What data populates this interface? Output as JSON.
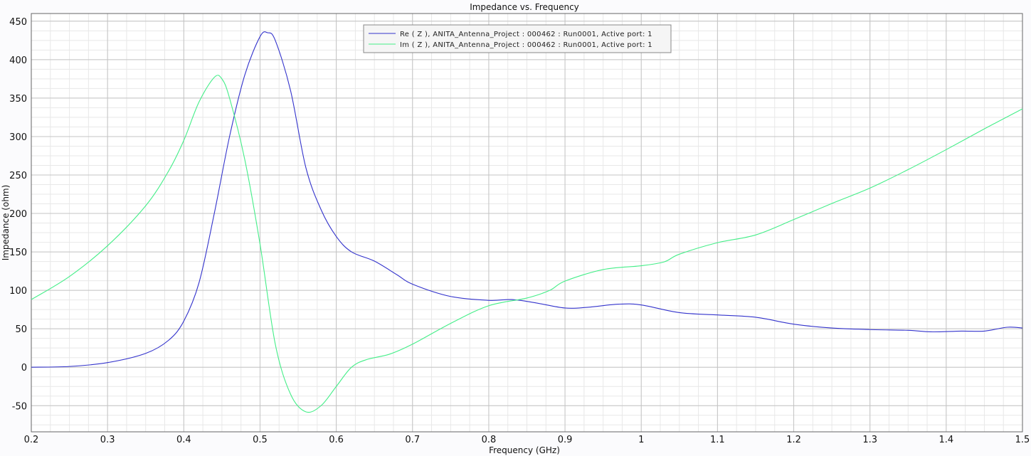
{
  "chart_data": {
    "type": "line",
    "title": "Impedance vs. Frequency",
    "xlabel": "Frequency (GHz)",
    "ylabel": "Impedance (ohm)",
    "xlim": [
      0.2,
      1.5
    ],
    "ylim": [
      -84,
      460
    ],
    "xticks": [
      0.2,
      0.3,
      0.4,
      0.5,
      0.6,
      0.7,
      0.8,
      0.9,
      1,
      1.1,
      1.2,
      1.3,
      1.4,
      1.5
    ],
    "yticks": [
      -50,
      0,
      50,
      100,
      150,
      200,
      250,
      300,
      350,
      400,
      450
    ],
    "grid": true,
    "legend_placement": "top-center",
    "series": [
      {
        "name": "Re ( Z ), ANITA_Antenna_Project : 000462 : Run0001, Active port: 1",
        "color": "#3333cc",
        "x": [
          0.2,
          0.25,
          0.3,
          0.35,
          0.38,
          0.4,
          0.42,
          0.44,
          0.46,
          0.48,
          0.5,
          0.51,
          0.52,
          0.54,
          0.56,
          0.58,
          0.6,
          0.62,
          0.65,
          0.68,
          0.7,
          0.75,
          0.8,
          0.83,
          0.86,
          0.9,
          0.93,
          0.97,
          1.0,
          1.05,
          1.1,
          1.15,
          1.2,
          1.25,
          1.3,
          1.35,
          1.38,
          1.42,
          1.45,
          1.48,
          1.5
        ],
        "y": [
          0,
          1,
          6,
          18,
          35,
          60,
          110,
          200,
          300,
          380,
          430,
          435,
          425,
          360,
          260,
          205,
          170,
          150,
          138,
          120,
          108,
          92,
          87,
          88,
          84,
          77,
          78,
          82,
          81,
          71,
          68,
          65,
          56,
          51,
          49,
          48,
          46,
          47,
          47,
          52,
          51
        ]
      },
      {
        "name": "Im ( Z ), ANITA_Antenna_Project : 000462 : Run0001, Active port: 1",
        "color": "#44ee88",
        "x": [
          0.2,
          0.25,
          0.3,
          0.35,
          0.38,
          0.4,
          0.42,
          0.44,
          0.45,
          0.46,
          0.48,
          0.5,
          0.52,
          0.54,
          0.56,
          0.58,
          0.6,
          0.62,
          0.64,
          0.67,
          0.7,
          0.75,
          0.8,
          0.85,
          0.88,
          0.9,
          0.95,
          1.0,
          1.03,
          1.05,
          1.1,
          1.15,
          1.2,
          1.25,
          1.3,
          1.35,
          1.4,
          1.45,
          1.5
        ],
        "y": [
          88,
          118,
          158,
          210,
          255,
          295,
          345,
          377,
          375,
          350,
          270,
          160,
          30,
          -35,
          -58,
          -50,
          -25,
          0,
          10,
          17,
          30,
          57,
          80,
          90,
          100,
          112,
          127,
          132,
          137,
          147,
          162,
          172,
          192,
          213,
          233,
          257,
          283,
          310,
          336
        ]
      }
    ]
  }
}
